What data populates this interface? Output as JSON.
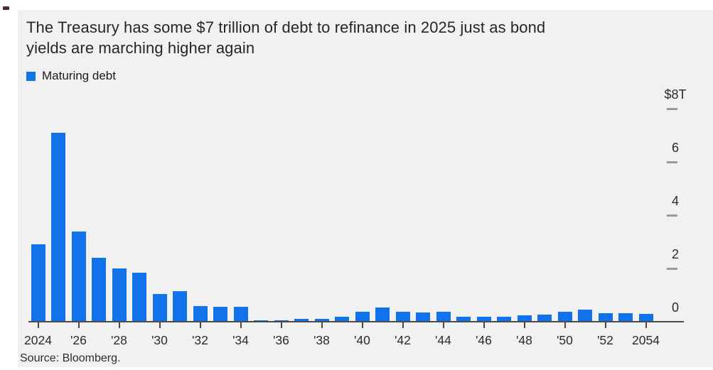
{
  "page": {
    "background_color": "#ffffff",
    "card_background_color": "#f1f1f1",
    "corner_mark_color": "#4a2e2e"
  },
  "header": {
    "title_lines": [
      "The Treasury has some $7 trillion of debt to refinance in 2025 just as bond",
      "yields are marching higher again"
    ]
  },
  "legend": {
    "label": "Maturing debt",
    "swatch_color": "#1272ea"
  },
  "source": {
    "text": "Source: Bloomberg."
  },
  "chart_data": {
    "type": "bar",
    "title": "The Treasury has some $7 trillion of debt to refinance in 2025 just as bond yields are marching higher again",
    "unit": "USD trillions",
    "bar_color": "#1272ea",
    "grid": false,
    "legend_position": "top-left",
    "y_axis_side": "right",
    "ylim": [
      0,
      8
    ],
    "categories": [
      2024,
      2025,
      2026,
      2027,
      2028,
      2029,
      2030,
      2031,
      2032,
      2033,
      2034,
      2035,
      2036,
      2037,
      2038,
      2039,
      2040,
      2041,
      2042,
      2043,
      2044,
      2045,
      2046,
      2047,
      2048,
      2049,
      2050,
      2051,
      2052,
      2053,
      2054
    ],
    "series": [
      {
        "name": "Maturing debt",
        "values": [
          2.9,
          7.1,
          3.4,
          2.4,
          2.0,
          1.85,
          1.05,
          1.15,
          0.6,
          0.57,
          0.55,
          0.05,
          0.06,
          0.11,
          0.1,
          0.2,
          0.38,
          0.53,
          0.37,
          0.36,
          0.38,
          0.18,
          0.2,
          0.2,
          0.25,
          0.27,
          0.37,
          0.45,
          0.33,
          0.31,
          0.29
        ]
      }
    ],
    "y_ticks": [
      {
        "label": "$8T",
        "value": 8
      },
      {
        "label": "6",
        "value": 6
      },
      {
        "label": "4",
        "value": 4
      },
      {
        "label": "2",
        "value": 2
      },
      {
        "label": "0",
        "value": 0
      }
    ],
    "x_ticks": [
      {
        "label": "2024",
        "year": 2024
      },
      {
        "label": "'26",
        "year": 2026
      },
      {
        "label": "'28",
        "year": 2028
      },
      {
        "label": "'30",
        "year": 2030
      },
      {
        "label": "'32",
        "year": 2032
      },
      {
        "label": "'34",
        "year": 2034
      },
      {
        "label": "'36",
        "year": 2036
      },
      {
        "label": "'38",
        "year": 2038
      },
      {
        "label": "'40",
        "year": 2040
      },
      {
        "label": "'42",
        "year": 2042
      },
      {
        "label": "'44",
        "year": 2044
      },
      {
        "label": "'46",
        "year": 2046
      },
      {
        "label": "'48",
        "year": 2048
      },
      {
        "label": "'50",
        "year": 2050
      },
      {
        "label": "'52",
        "year": 2052
      },
      {
        "label": "2054",
        "year": 2054
      }
    ]
  }
}
